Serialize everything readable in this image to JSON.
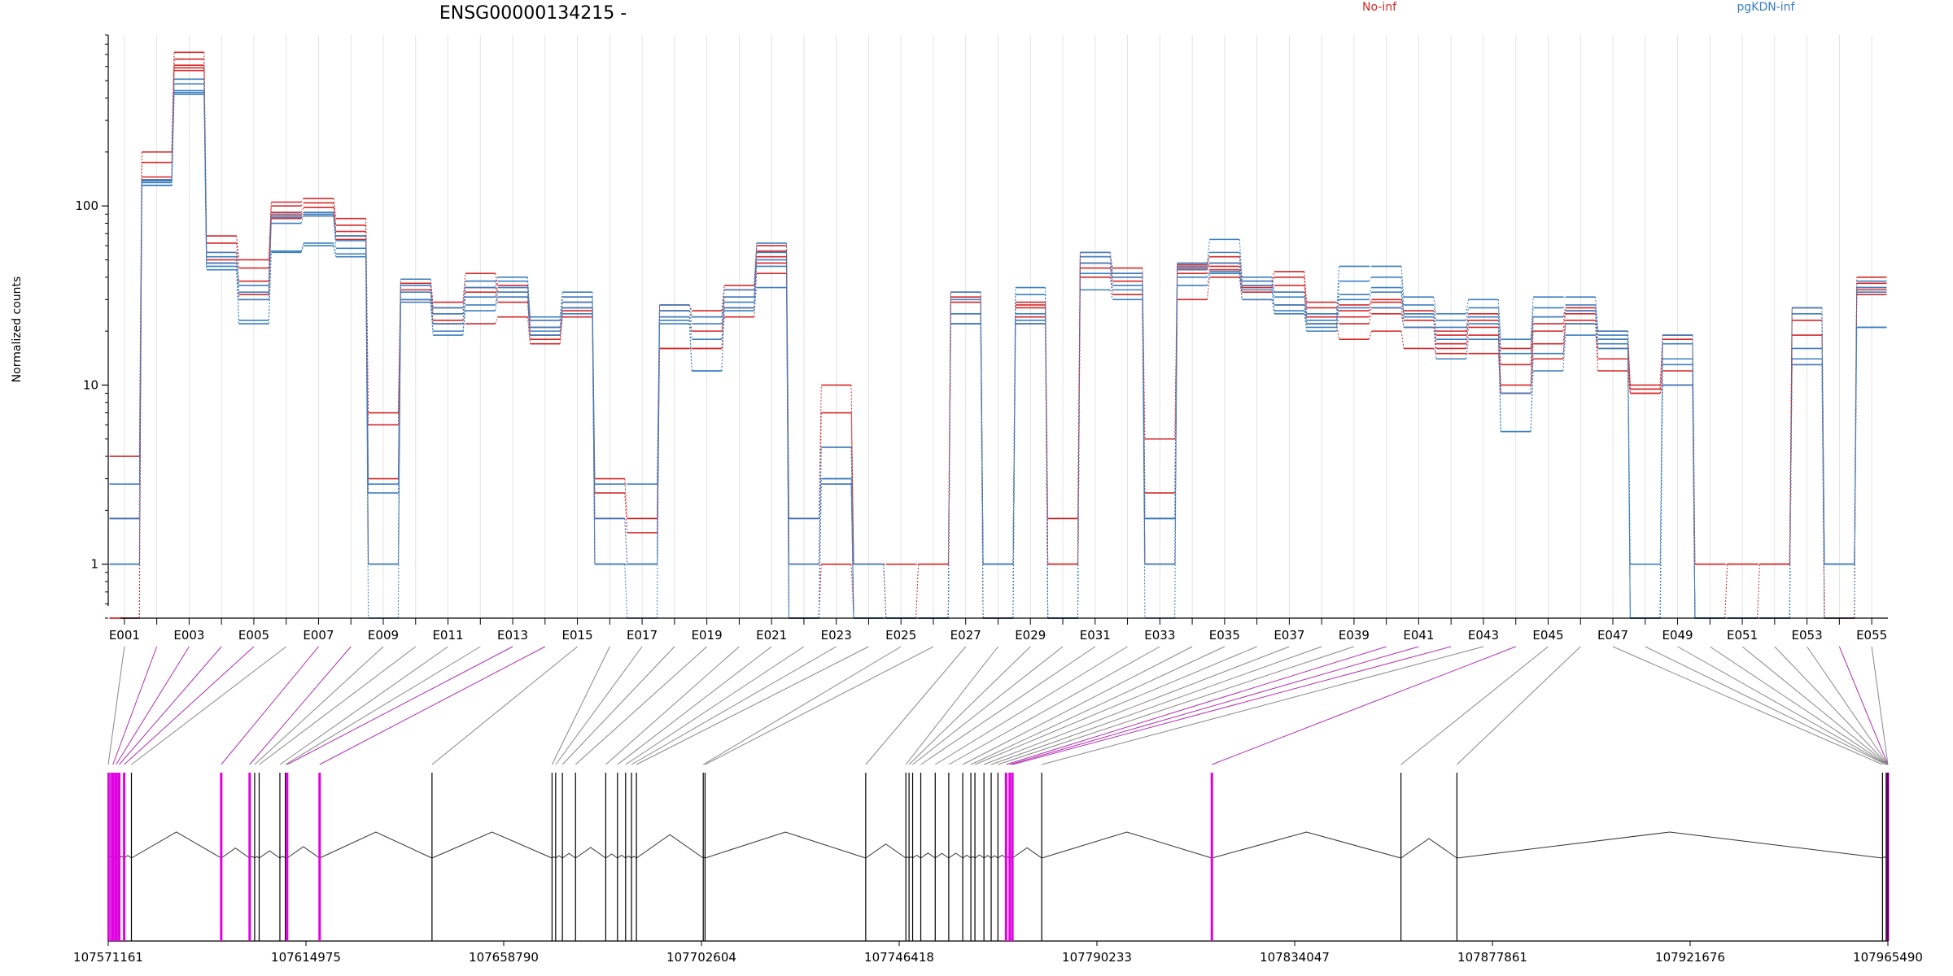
{
  "chart_data": {
    "type": "line",
    "title": "ENSG00000134215 -",
    "ylabel": "Normalized counts",
    "yscale": "log",
    "ylim": [
      0.5,
      900
    ],
    "yticks": [
      1,
      10,
      100
    ],
    "ytick_labels": [
      "1",
      "10",
      "100"
    ],
    "exons": [
      "E001",
      "E002",
      "E003",
      "E004",
      "E005",
      "E006",
      "E007",
      "E008",
      "E009",
      "E010",
      "E011",
      "E012",
      "E013",
      "E014",
      "E015",
      "E016",
      "E017",
      "E018",
      "E019",
      "E020",
      "E021",
      "E022",
      "E023",
      "E024",
      "E025",
      "E026",
      "E027",
      "E028",
      "E029",
      "E030",
      "E031",
      "E032",
      "E033",
      "E034",
      "E035",
      "E036",
      "E037",
      "E038",
      "E039",
      "E040",
      "E041",
      "E042",
      "E043",
      "E044",
      "E045",
      "E046",
      "E047",
      "E048",
      "E049",
      "E050",
      "E051",
      "E052",
      "E053",
      "E054",
      "E055"
    ],
    "xtick_labels": [
      "E001",
      "E003",
      "E005",
      "E007",
      "E009",
      "E011",
      "E013",
      "E015",
      "E017",
      "E019",
      "E021",
      "E023",
      "E025",
      "E027",
      "E029",
      "E031",
      "E033",
      "E035",
      "E037",
      "E039",
      "E041",
      "E043",
      "E045",
      "E047",
      "E049",
      "E051",
      "E053",
      "E055"
    ],
    "legend": [
      {
        "label": "No-inf",
        "color": "#d62728"
      },
      {
        "label": "pgKDN-inf",
        "color": "#3a7fc1"
      }
    ],
    "series": [
      {
        "group": "No-inf",
        "color": "#d62728",
        "values": [
          4,
          200,
          720,
          68,
          50,
          105,
          110,
          85,
          7,
          39,
          29,
          42,
          36,
          23,
          31,
          3,
          1.8,
          28,
          26,
          36,
          60,
          1.8,
          10,
          1,
          1,
          1,
          33,
          1,
          29,
          1.8,
          55,
          45,
          5,
          47,
          52,
          38,
          43,
          29,
          28,
          30,
          26,
          20,
          25,
          16,
          24,
          27,
          20,
          10,
          19,
          1,
          1,
          1,
          27,
          1,
          40
        ]
      },
      {
        "group": "No-inf",
        "color": "#d62728",
        "values": [
          1.8,
          175,
          660,
          62,
          45,
          100,
          104,
          78,
          6,
          37,
          27,
          38,
          33,
          21,
          29,
          2.5,
          1.5,
          26,
          24,
          34,
          56,
          1,
          7,
          1,
          0.5,
          1,
          31,
          1,
          28,
          1,
          52,
          42,
          2.5,
          45,
          48,
          36,
          40,
          27,
          26,
          29,
          25,
          19,
          23,
          13,
          22,
          26,
          18,
          9.5,
          18,
          1,
          1,
          1,
          23,
          1,
          37
        ]
      },
      {
        "group": "No-inf",
        "color": "#d62728",
        "values": [
          1.8,
          145,
          610,
          55,
          38,
          92,
          98,
          72,
          3,
          34,
          25,
          35,
          31,
          19,
          27,
          1.8,
          1,
          24,
          20,
          31,
          52,
          1,
          4.5,
          1,
          0.5,
          0.5,
          29,
          1,
          27,
          1,
          48,
          40,
          1.8,
          44,
          46,
          35,
          36,
          25,
          24,
          27,
          23,
          17,
          21,
          10,
          20,
          25,
          16,
          9.5,
          14,
          0.5,
          1,
          1,
          19,
          0.5,
          35
        ]
      },
      {
        "group": "No-inf",
        "color": "#d62728",
        "values": [
          0.5,
          140,
          590,
          50,
          32,
          88,
          92,
          68,
          1,
          30,
          23,
          33,
          29,
          18,
          26,
          1,
          1,
          16,
          16,
          27,
          48,
          0.5,
          2.8,
          0.5,
          0.5,
          0.5,
          25,
          0.5,
          24,
          1,
          45,
          38,
          1,
          42,
          44,
          33,
          33,
          24,
          22,
          25,
          21,
          16,
          19,
          9,
          17,
          23,
          14,
          9,
          12,
          0.5,
          0.5,
          1,
          14,
          0.5,
          34
        ]
      },
      {
        "group": "No-inf",
        "color": "#d62728",
        "values": [
          0.5,
          140,
          570,
          48,
          30,
          85,
          88,
          65,
          1,
          30,
          22,
          22,
          24,
          17,
          24,
          1,
          1,
          16,
          16,
          24,
          42,
          0.5,
          1,
          0.5,
          0.5,
          0.5,
          22,
          0.5,
          22,
          0.5,
          40,
          32,
          1,
          30,
          40,
          30,
          28,
          22,
          18,
          20,
          16,
          15,
          15,
          9,
          14,
          22,
          12,
          9,
          10,
          0.5,
          0.5,
          0.5,
          13,
          0.5,
          32
        ]
      },
      {
        "group": "pgKDN-inf",
        "color": "#3a7fc1",
        "values": [
          2.8,
          140,
          510,
          55,
          36,
          90,
          92,
          68,
          2.8,
          39,
          27,
          38,
          40,
          24,
          33,
          2.8,
          2.8,
          28,
          24,
          34,
          62,
          1.8,
          4.5,
          1,
          0.5,
          0.5,
          33,
          1,
          35,
          0.5,
          55,
          42,
          1.8,
          48,
          65,
          40,
          33,
          25,
          46,
          46,
          31,
          25,
          30,
          18,
          31,
          31,
          20,
          1,
          19,
          0.5,
          0.5,
          0.5,
          27,
          1,
          38
        ]
      },
      {
        "group": "pgKDN-inf",
        "color": "#3a7fc1",
        "values": [
          1.8,
          138,
          480,
          52,
          33,
          86,
          90,
          64,
          2.5,
          36,
          25,
          35,
          38,
          23,
          31,
          1.8,
          1,
          26,
          22,
          31,
          55,
          1,
          4.5,
          0.5,
          0.5,
          0.5,
          30,
          1,
          32,
          0.5,
          52,
          40,
          1.8,
          46,
          55,
          38,
          31,
          23,
          38,
          40,
          28,
          23,
          27,
          15,
          27,
          28,
          19,
          0.5,
          17,
          0.5,
          0.5,
          0.5,
          25,
          1,
          35
        ]
      },
      {
        "group": "pgKDN-inf",
        "color": "#3a7fc1",
        "values": [
          1,
          135,
          440,
          48,
          30,
          80,
          88,
          58,
          1,
          33,
          22,
          31,
          35,
          21,
          29,
          1,
          1,
          24,
          18,
          29,
          50,
          0.5,
          3,
          0.5,
          0.5,
          0.5,
          25,
          1,
          25,
          0.5,
          48,
          36,
          1,
          44,
          48,
          36,
          28,
          22,
          32,
          35,
          25,
          21,
          24,
          9,
          24,
          26,
          18,
          0.5,
          14,
          0.5,
          0.5,
          0.5,
          16,
          1,
          33
        ]
      },
      {
        "group": "pgKDN-inf",
        "color": "#3a7fc1",
        "values": [
          1,
          130,
          430,
          46,
          23,
          56,
          62,
          54,
          1,
          30,
          20,
          28,
          33,
          20,
          27,
          1,
          1,
          23,
          12,
          27,
          46,
          0.5,
          3,
          0.5,
          0.5,
          0.5,
          22,
          0.5,
          23,
          0.5,
          42,
          34,
          1,
          40,
          43,
          34,
          26,
          21,
          30,
          33,
          24,
          18,
          22,
          5.5,
          15,
          22,
          17,
          0.5,
          13,
          0.5,
          0.5,
          0.5,
          14,
          1,
          21
        ]
      },
      {
        "group": "pgKDN-inf",
        "color": "#3a7fc1",
        "values": [
          1,
          130,
          420,
          44,
          22,
          55,
          60,
          52,
          0.5,
          29,
          19,
          26,
          31,
          19,
          25,
          1,
          0.5,
          22,
          12,
          26,
          35,
          0.5,
          2.8,
          0.5,
          0.5,
          0.5,
          22,
          0.5,
          22,
          0.5,
          34,
          30,
          0.5,
          36,
          42,
          30,
          25,
          20,
          27,
          27,
          21,
          14,
          18,
          5.5,
          12,
          19,
          16,
          0.5,
          10,
          0.5,
          0.5,
          0.5,
          13,
          0.5,
          21
        ]
      }
    ],
    "genome": {
      "ticks": [
        107571161,
        107614975,
        107658790,
        107702604,
        107746418,
        107790233,
        107834047,
        107877861,
        107921676,
        107965490
      ],
      "tick_labels": [
        "107571161",
        "107614975",
        "107658790",
        "107702604",
        "107746418",
        "107790233",
        "107834047",
        "107877861",
        "107921676",
        "107965490"
      ],
      "range": [
        107571161,
        107965490
      ],
      "exon_starts": [
        107571161,
        107572200,
        107572900,
        107573600,
        107574700,
        107576300,
        107596200,
        107602500,
        107603600,
        107604600,
        107609200,
        107610400,
        107610800,
        107618000,
        107642900,
        107669500,
        107670300,
        107671800,
        107674700,
        107681400,
        107684000,
        107685800,
        107687100,
        107688200,
        107703000,
        107703400,
        107739000,
        107747900,
        107748600,
        107749400,
        107751200,
        107754400,
        107757400,
        107760500,
        107762300,
        107763200,
        107765200,
        107766800,
        107768300,
        107770100,
        107770900,
        107771500,
        107778000,
        107815700,
        107857600,
        107870000,
        107964300,
        107965100,
        107965200,
        107965300,
        107965400,
        107965450,
        107965480,
        107965485,
        107965488
      ],
      "highlighted_exons": [
        "E002",
        "E003",
        "E004",
        "E005",
        "E007",
        "E008",
        "E013",
        "E014",
        "E040",
        "E041",
        "E042",
        "E044",
        "E054"
      ]
    }
  }
}
